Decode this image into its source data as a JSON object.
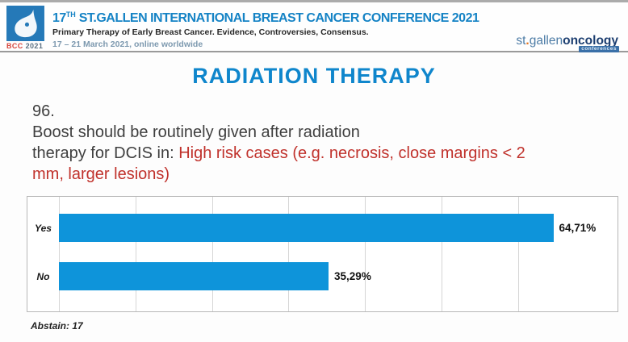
{
  "header": {
    "logo": {
      "caption_bcc": "BCC",
      "caption_year": "2021"
    },
    "title_num": "17",
    "title_sup": "TH",
    "title_rest": " ST.GALLEN INTERNATIONAL BREAST CANCER CONFERENCE 2021",
    "subtitle": "Primary Therapy of Early Breast Cancer. Evidence, Controversies, Consensus.",
    "dates": "17 – 21 March 2021, online worldwide",
    "org_logo": {
      "st": "st",
      "dot": ".",
      "gallen": "gallen",
      "oncology": "oncology",
      "badge": "conferences"
    }
  },
  "main": {
    "title": "RADIATION THERAPY",
    "question": {
      "lines": [
        {
          "plain": "96.",
          "red": ""
        },
        {
          "plain": "Boost should be routinely given after radiation",
          "red": ""
        },
        {
          "plain": "therapy for DCIS in: ",
          "red": "High risk cases (e.g. necrosis, close margins < 2"
        },
        {
          "plain": "",
          "red": "mm, larger lesions)"
        }
      ]
    },
    "abstain": "Abstain: 17"
  },
  "chart_data": {
    "type": "bar",
    "orientation": "horizontal",
    "title": "",
    "categories": [
      "Yes",
      "No"
    ],
    "values": [
      64.71,
      35.29
    ],
    "value_labels": [
      "64,71%",
      "35,29%"
    ],
    "xlim": [
      0,
      73
    ],
    "gridline_interval": 10,
    "grid": true,
    "legend": false,
    "bar_color": "#0e94da"
  },
  "colors": {
    "header_title_blue": "#1583c5",
    "page_title_blue": "#0f86cc",
    "bar_blue": "#0e94da",
    "highlight_red": "#c0312b",
    "bcc_logo_red": "#d6453c",
    "dates_blue_gray": "#7d99af",
    "org_logo_navy": "#1c3e70",
    "org_logo_steel_blue": "#4d7ca6",
    "org_logo_orange_dot": "#e87722"
  }
}
